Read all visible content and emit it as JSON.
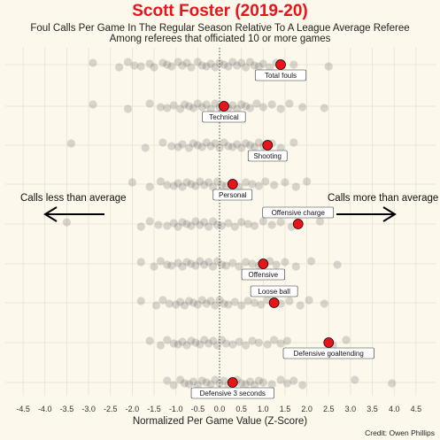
{
  "chart_data": {
    "type": "scatter",
    "title": "Scott Foster (2019-20)",
    "subtitle_line1": "Foul Calls Per Game In The Regular Season Relative To A League Average Referee",
    "subtitle_line2": "Among referees that officiated 10 or more games",
    "xlabel": "Normalized Per Game Value (Z-Score)",
    "xlim": [
      -4.6,
      4.6
    ],
    "xticks": [
      -4.5,
      -4.0,
      -3.5,
      -3.0,
      -2.5,
      -2.0,
      -1.5,
      -1.0,
      -0.5,
      0.0,
      0.5,
      1.0,
      1.5,
      2.0,
      2.5,
      3.0,
      3.5,
      4.0,
      4.5
    ],
    "reference_line": 0.0,
    "grid": true,
    "left_annotation": "Calls less than average",
    "right_annotation": "Calls more than average",
    "credit": "Credit: Owen Phillips",
    "highlight_color": "#e8141a",
    "other_color": "#555555",
    "categories": [
      {
        "label": "Total fouls",
        "value": 1.4,
        "others": [
          -2.9,
          -2.3,
          -2.1,
          -1.95,
          -1.8,
          -1.6,
          -1.5,
          -1.3,
          -1.2,
          -1.1,
          -0.95,
          -0.85,
          -0.75,
          -0.65,
          -0.5,
          -0.4,
          -0.3,
          -0.2,
          -0.1,
          0.0,
          0.1,
          0.2,
          0.3,
          0.4,
          0.5,
          0.6,
          0.7,
          0.8,
          0.9,
          1.0,
          1.15,
          1.3,
          1.7,
          2.5
        ]
      },
      {
        "label": "Technical",
        "value": 0.1,
        "others": [
          -2.9,
          -2.1,
          -1.6,
          -1.35,
          -1.2,
          -1.05,
          -0.9,
          -0.8,
          -0.7,
          -0.6,
          -0.5,
          -0.4,
          -0.3,
          -0.2,
          -0.1,
          0.0,
          0.2,
          0.3,
          0.4,
          0.5,
          0.6,
          0.7,
          0.85,
          1.0,
          1.2,
          1.4,
          1.6,
          1.9,
          2.4
        ]
      },
      {
        "label": "Shooting",
        "value": 1.1,
        "others": [
          -3.4,
          -1.7,
          -1.3,
          -1.1,
          -0.95,
          -0.85,
          -0.7,
          -0.6,
          -0.5,
          -0.4,
          -0.3,
          -0.2,
          -0.1,
          0.0,
          0.1,
          0.2,
          0.3,
          0.4,
          0.5,
          0.6,
          0.7,
          0.8,
          0.9,
          1.0,
          1.2,
          1.4,
          1.7
        ]
      },
      {
        "label": "Personal",
        "value": 0.3,
        "others": [
          -2.0,
          -1.6,
          -1.35,
          -1.2,
          -1.05,
          -0.95,
          -0.85,
          -0.75,
          -0.65,
          -0.55,
          -0.45,
          -0.35,
          -0.25,
          -0.15,
          -0.05,
          0.05,
          0.15,
          0.3,
          0.45,
          0.6,
          0.75,
          0.9,
          1.05,
          1.25,
          1.5,
          1.75,
          2.0
        ]
      },
      {
        "label": "Offensive charge",
        "value": 1.8,
        "others": [
          -3.5,
          -1.8,
          -1.6,
          -1.4,
          -1.2,
          -1.05,
          -0.95,
          -0.85,
          -0.75,
          -0.65,
          -0.55,
          -0.45,
          -0.35,
          -0.25,
          -0.15,
          -0.05,
          0.05,
          0.2,
          0.35,
          0.5,
          0.65,
          0.8,
          1.0,
          1.2,
          1.4,
          1.65,
          2.3
        ]
      },
      {
        "label": "Offensive",
        "value": 1.0,
        "others": [
          -1.8,
          -1.5,
          -1.35,
          -1.2,
          -1.1,
          -0.95,
          -0.85,
          -0.75,
          -0.65,
          -0.55,
          -0.45,
          -0.35,
          -0.25,
          -0.15,
          -0.05,
          0.05,
          0.15,
          0.3,
          0.45,
          0.6,
          0.75,
          0.9,
          1.15,
          1.3,
          1.5,
          1.75,
          2.1,
          2.7
        ]
      },
      {
        "label": "Loose ball",
        "value": 1.25,
        "others": [
          -1.8,
          -1.45,
          -1.3,
          -1.15,
          -1.0,
          -0.9,
          -0.8,
          -0.7,
          -0.6,
          -0.5,
          -0.4,
          -0.3,
          -0.2,
          -0.1,
          0.0,
          0.1,
          0.2,
          0.35,
          0.5,
          0.65,
          0.8,
          0.95,
          1.1,
          1.4,
          1.6,
          1.85,
          2.05,
          2.4
        ]
      },
      {
        "label": "Defensive goaltending",
        "value": 2.5,
        "others": [
          -1.6,
          -1.35,
          -1.2,
          -1.05,
          -0.95,
          -0.85,
          -0.75,
          -0.65,
          -0.55,
          -0.45,
          -0.35,
          -0.25,
          -0.15,
          -0.05,
          0.05,
          0.15,
          0.3,
          0.45,
          0.6,
          0.75,
          0.9,
          1.1,
          1.25,
          1.4,
          1.55,
          2.6,
          2.9
        ]
      },
      {
        "label": "Defensive 3 seconds",
        "value": 0.3,
        "others": [
          -1.2,
          -1.05,
          -0.9,
          -0.8,
          -0.7,
          -0.6,
          -0.5,
          -0.4,
          -0.3,
          -0.2,
          -0.1,
          0.0,
          0.1,
          0.2,
          0.4,
          0.5,
          0.6,
          0.7,
          0.8,
          0.9,
          1.0,
          1.2,
          1.4,
          1.55,
          1.7,
          1.9,
          3.1,
          3.95
        ]
      }
    ]
  }
}
